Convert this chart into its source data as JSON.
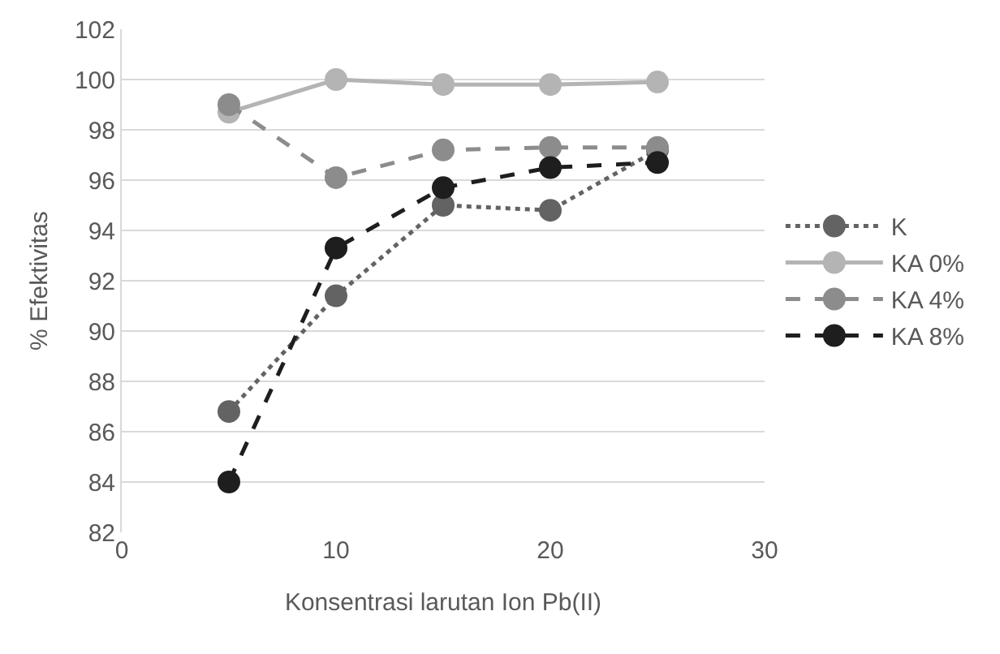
{
  "chart_data": {
    "type": "line",
    "xlabel": "Konsentrasi larutan Ion Pb(II)",
    "ylabel": "% Efektivitas",
    "x": [
      5,
      10,
      15,
      20,
      25
    ],
    "series": [
      {
        "name": "K",
        "color": "#636363",
        "line_style": "dotted",
        "values": [
          86.8,
          91.4,
          95.0,
          94.8,
          97.2
        ]
      },
      {
        "name": "KA 0%",
        "color": "#b4b4b4",
        "line_style": "solid",
        "values": [
          98.7,
          100.0,
          99.8,
          99.8,
          99.9
        ]
      },
      {
        "name": "KA 4%",
        "color": "#8c8c8c",
        "line_style": "dashed",
        "values": [
          99.0,
          96.1,
          97.2,
          97.3,
          97.3
        ]
      },
      {
        "name": "KA 8%",
        "color": "#1e1e1e",
        "line_style": "dashed",
        "values": [
          84.0,
          93.3,
          95.7,
          96.5,
          96.7
        ]
      }
    ],
    "xlim": [
      0,
      30
    ],
    "xticks": [
      0,
      10,
      20,
      30
    ],
    "ylim": [
      82,
      102
    ],
    "yticks": [
      82,
      84,
      86,
      88,
      90,
      92,
      94,
      96,
      98,
      100,
      102
    ],
    "grid": "y",
    "legend": "right",
    "marker": "circle"
  }
}
